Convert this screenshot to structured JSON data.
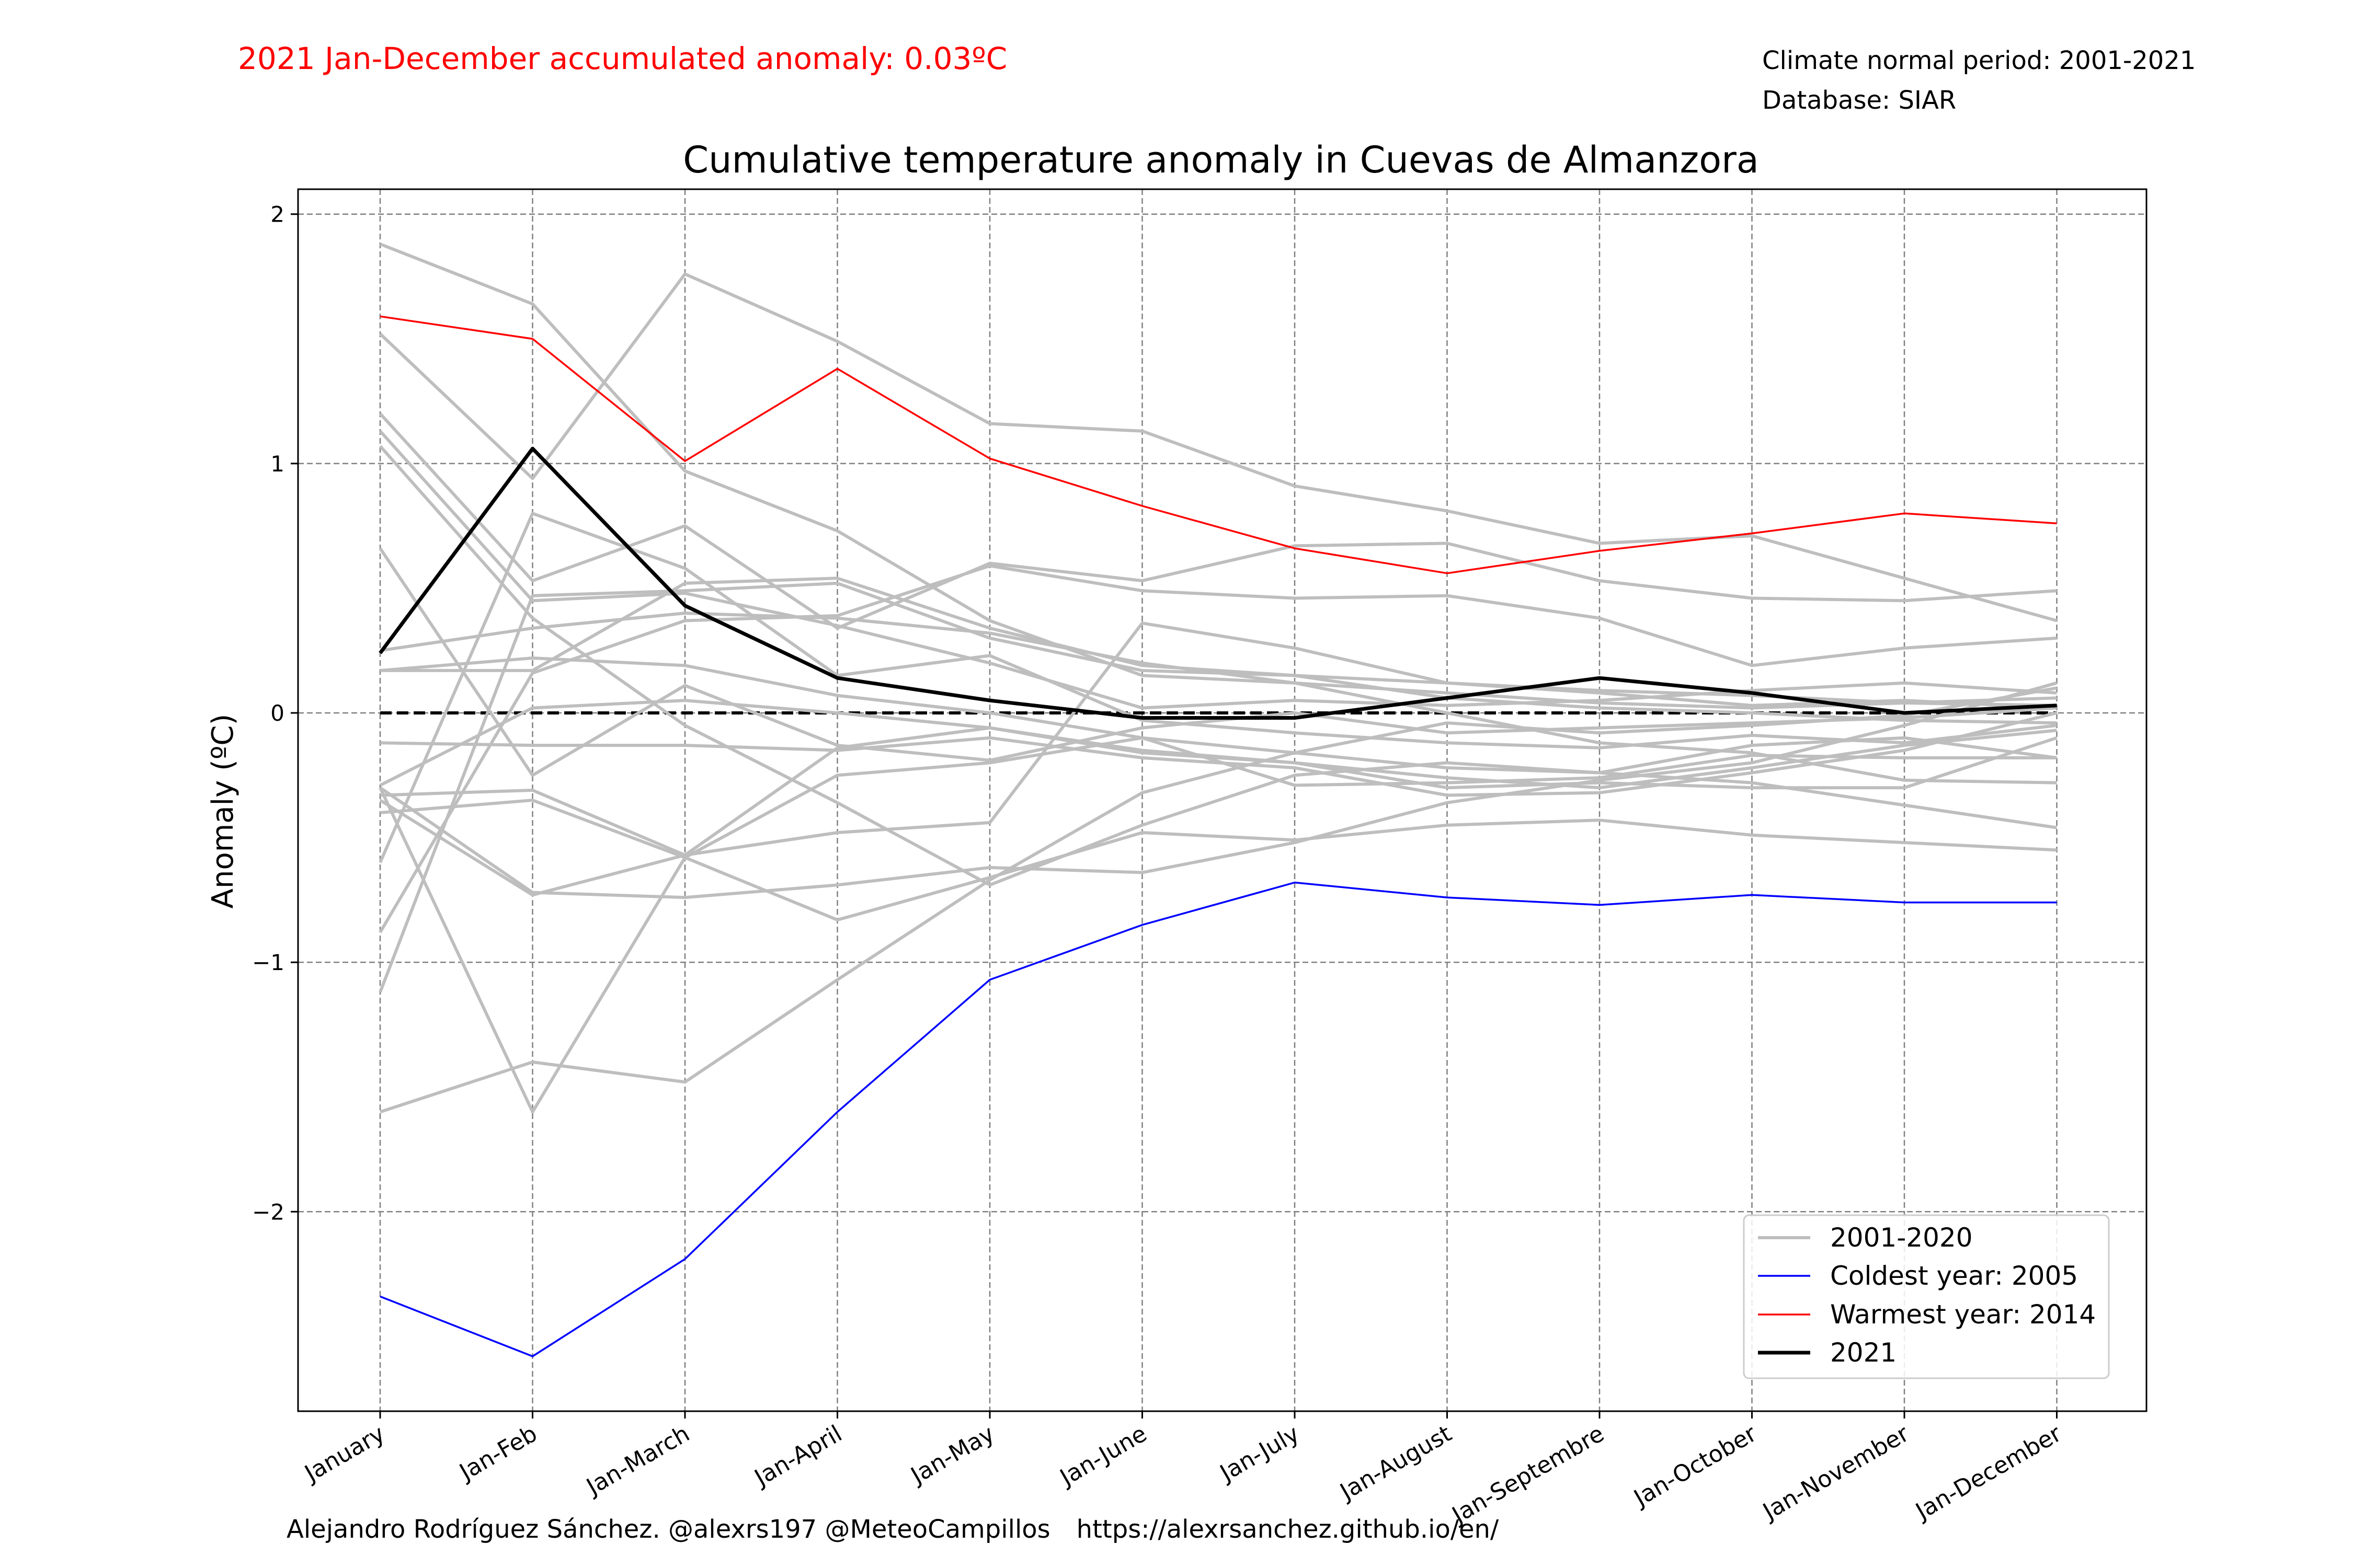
{
  "header": {
    "headline": "2021 Jan-December accumulated anomaly: 0.03ºC",
    "normal_period": "Climate normal period: 2001-2021",
    "database": "Database: SIAR"
  },
  "footer": {
    "author": "Alejandro Rodríguez Sánchez. @alexrs197 @MeteoCampillos",
    "url": "https://alexrsanchez.github.io/en/"
  },
  "colors": {
    "grey": "#bebebe",
    "coldest": "#0000ff",
    "warmest": "#ff0000",
    "current": "#000000",
    "headline": "#ff0000"
  },
  "chart_data": {
    "type": "line",
    "title": "Cumulative temperature anomaly in Cuevas de Almanzora",
    "xlabel": "",
    "ylabel": "Anomaly (ºC)",
    "ylim": [
      -2.8,
      2.1
    ],
    "yticks": [
      -2,
      -1,
      0,
      1,
      2
    ],
    "ytick_labels": [
      "−2",
      "−1",
      "0",
      "1",
      "2"
    ],
    "grid": true,
    "legend_position": "lower-right",
    "zero_line": 0,
    "categories": [
      "January",
      "Jan-Feb",
      "Jan-March",
      "Jan-April",
      "Jan-May",
      "Jan-June",
      "Jan-July",
      "Jan-August",
      "Jan-Septembre",
      "Jan-October",
      "Jan-November",
      "Jan-December"
    ],
    "legend": [
      {
        "label": "2001-2020",
        "color_key": "grey"
      },
      {
        "label": "Coldest year: 2005",
        "color_key": "coldest"
      },
      {
        "label": "Warmest year: 2014",
        "color_key": "warmest"
      },
      {
        "label": "2021",
        "color_key": "current"
      }
    ],
    "grey_series": [
      [
        1.88,
        1.64,
        0.97,
        0.73,
        0.37,
        0.15,
        0.12,
        0.0,
        -0.12,
        -0.16,
        -0.27,
        -0.28
      ],
      [
        1.52,
        0.94,
        1.76,
        1.49,
        1.16,
        1.13,
        0.91,
        0.81,
        0.68,
        0.71,
        0.54,
        0.37
      ],
      [
        1.2,
        0.53,
        0.75,
        0.34,
        0.6,
        0.53,
        0.67,
        0.68,
        0.53,
        0.46,
        0.45,
        0.49
      ],
      [
        1.13,
        0.45,
        0.48,
        0.35,
        0.2,
        0.02,
        0.05,
        0.03,
        0.05,
        0.09,
        0.12,
        0.08
      ],
      [
        1.07,
        0.38,
        -0.05,
        -0.36,
        -0.69,
        -0.45,
        -0.25,
        -0.2,
        -0.24,
        -0.13,
        -0.1,
        -0.18
      ],
      [
        0.66,
        -0.25,
        0.11,
        -0.13,
        -0.19,
        -0.06,
        0.0,
        -0.08,
        -0.06,
        -0.04,
        -0.02,
        0.02
      ],
      [
        0.25,
        0.34,
        0.4,
        0.38,
        0.32,
        0.2,
        0.12,
        0.08,
        0.04,
        0.02,
        0.04,
        0.06
      ],
      [
        0.17,
        0.17,
        0.52,
        0.54,
        0.34,
        0.19,
        0.15,
        0.06,
        0.02,
        0.0,
        -0.03,
        -0.04
      ],
      [
        0.17,
        0.22,
        0.19,
        0.07,
        0.0,
        -0.1,
        -0.16,
        -0.22,
        -0.24,
        -0.28,
        -0.37,
        -0.46
      ],
      [
        -0.12,
        -0.13,
        -0.13,
        -0.15,
        -0.1,
        -0.18,
        -0.22,
        -0.33,
        -0.32,
        -0.24,
        -0.15,
        0.0
      ],
      [
        -0.29,
        0.02,
        0.05,
        0.0,
        -0.06,
        -0.16,
        -0.2,
        -0.26,
        -0.3,
        -0.22,
        -0.13,
        -0.07
      ],
      [
        -0.33,
        -0.31,
        -0.57,
        -0.48,
        -0.44,
        0.36,
        0.26,
        0.12,
        0.09,
        0.07,
        0.04,
        0.03
      ],
      [
        -0.4,
        -0.35,
        -0.58,
        -0.83,
        -0.66,
        -0.48,
        -0.51,
        -0.45,
        -0.43,
        -0.49,
        -0.52,
        -0.55
      ],
      [
        -0.3,
        -0.72,
        -0.74,
        -0.69,
        -0.62,
        -0.64,
        -0.52,
        -0.36,
        -0.27,
        -0.2,
        -0.05,
        0.12
      ],
      [
        -0.6,
        0.8,
        0.58,
        0.15,
        0.23,
        -0.03,
        -0.08,
        -0.12,
        -0.14,
        -0.09,
        -0.12,
        -0.05
      ],
      [
        -0.88,
        0.16,
        0.37,
        0.39,
        0.59,
        0.49,
        0.46,
        0.47,
        0.38,
        0.19,
        0.26,
        0.3
      ],
      [
        -1.12,
        0.47,
        0.49,
        0.52,
        0.3,
        0.17,
        0.15,
        0.12,
        0.08,
        0.03,
        0.05,
        0.02
      ],
      [
        -0.3,
        -1.6,
        -0.58,
        -0.25,
        -0.2,
        -0.1,
        -0.29,
        -0.28,
        -0.26,
        -0.17,
        -0.18,
        -0.18
      ],
      [
        -1.6,
        -1.4,
        -1.48,
        -1.07,
        -0.67,
        -0.32,
        -0.16,
        -0.04,
        -0.08,
        -0.05,
        -0.01,
        0.1
      ],
      [
        -0.35,
        -0.73,
        -0.57,
        -0.14,
        -0.06,
        -0.15,
        -0.2,
        -0.3,
        -0.28,
        -0.3,
        -0.3,
        -0.1
      ]
    ],
    "series": [
      {
        "name": "Coldest year: 2005",
        "color_key": "coldest",
        "values": [
          -2.34,
          -2.58,
          -2.19,
          -1.6,
          -1.07,
          -0.85,
          -0.68,
          -0.74,
          -0.77,
          -0.73,
          -0.76,
          -0.76
        ]
      },
      {
        "name": "Warmest year: 2014",
        "color_key": "warmest",
        "values": [
          1.59,
          1.5,
          1.01,
          1.38,
          1.02,
          0.83,
          0.66,
          0.56,
          0.65,
          0.72,
          0.8,
          0.76
        ]
      },
      {
        "name": "2021",
        "color_key": "current",
        "values": [
          0.24,
          1.06,
          0.43,
          0.14,
          0.05,
          -0.02,
          -0.02,
          0.06,
          0.14,
          0.08,
          0.0,
          0.03
        ]
      }
    ]
  }
}
